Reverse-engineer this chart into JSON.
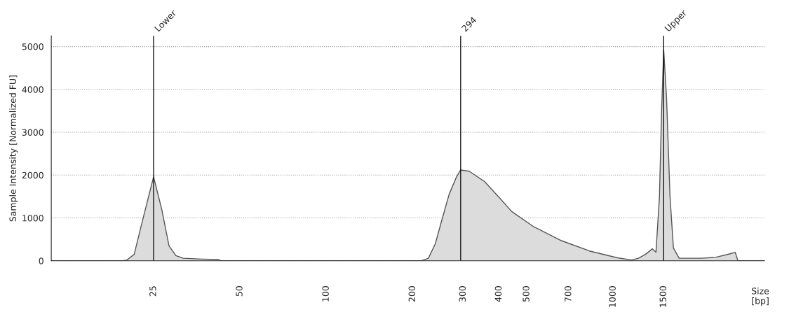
{
  "chart_data": {
    "type": "area",
    "ylabel": "Sample Intensity [Normalized FU]",
    "xlabel": "Size\n[bp]",
    "x": [
      11,
      19.6,
      20.2,
      21.4,
      22.6,
      25,
      26.7,
      28.3,
      29.9,
      31.7,
      37,
      42,
      43,
      214,
      227,
      240,
      254,
      268,
      284,
      294,
      315,
      356,
      398,
      443,
      527,
      660,
      826,
      1035,
      1158,
      1225,
      1295,
      1370,
      1410,
      1450,
      1475,
      1500,
      1535,
      1578,
      1622,
      1697,
      2032,
      2273,
      2545,
      2662,
      2723,
      3370
    ],
    "series": [
      {
        "color": "#dcdcdc",
        "values": [
          0,
          0,
          20,
          150,
          800,
          1960,
          1200,
          350,
          120,
          60,
          40,
          30,
          0,
          0,
          60,
          400,
          1000,
          1550,
          1950,
          2120,
          2090,
          1850,
          1500,
          1150,
          800,
          470,
          230,
          70,
          20,
          60,
          150,
          280,
          200,
          1500,
          3500,
          4930,
          3800,
          1500,
          300,
          60,
          60,
          80,
          160,
          200,
          0,
          0
        ]
      }
    ],
    "xlim": [
      11,
      3370
    ],
    "log": "x",
    "xticks": [
      25,
      50,
      100,
      200,
      300,
      400,
      500,
      700,
      1000,
      1500
    ],
    "ylim": [
      0,
      5250
    ],
    "yticks": [
      0,
      1000,
      2000,
      3000,
      4000,
      5000
    ],
    "ref_lines": [
      {
        "axis": "x",
        "value": 25,
        "label": "Lower",
        "color": "#000000"
      },
      {
        "axis": "x",
        "value": 294,
        "label": "294",
        "color": "#000000"
      },
      {
        "axis": "x",
        "value": 1500,
        "label": "Upper",
        "color": "#000000"
      }
    ],
    "grid": "y",
    "marker": "none",
    "line_style": "solid"
  }
}
